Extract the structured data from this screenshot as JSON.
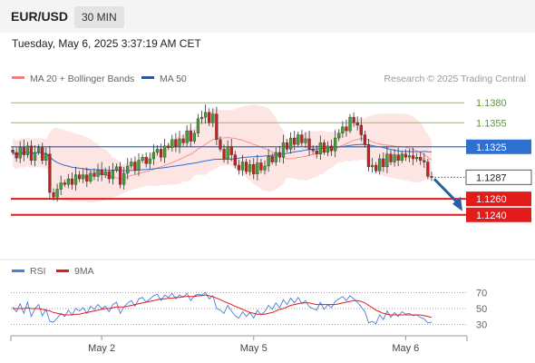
{
  "header": {
    "symbol": "EUR/USD",
    "timeframe": "30 MIN"
  },
  "timestamp": "Tuesday, May 6, 2025 3:37:19 AM CET",
  "legend": {
    "items": [
      {
        "label": "MA 20 + Bollinger Bands",
        "color": "#f08080"
      },
      {
        "label": "MA 50",
        "color": "#2e5597"
      }
    ]
  },
  "source": "Research © 2025 Trading Central",
  "rsi_legend": {
    "items": [
      {
        "label": "RSI",
        "color": "#4a7fd6"
      },
      {
        "label": "9MA",
        "color": "#e21b1b"
      }
    ]
  },
  "colors": {
    "up": "#41a32f",
    "down": "#c81e1e",
    "resistance": "#8ac26a",
    "pivot": "#2e6fcf",
    "support": "#e21b1b",
    "band_fill": "#fde0de",
    "arrow": "#2b5fa3"
  },
  "chart_data": {
    "type": "candlestick",
    "y_range": [
      1.1225,
      1.1395
    ],
    "levels": [
      {
        "value": 1.138,
        "label": "1.1380",
        "kind": "resistance"
      },
      {
        "value": 1.1355,
        "label": "1.1355",
        "kind": "resistance"
      },
      {
        "value": 1.1325,
        "label": "1.1325",
        "kind": "pivot"
      },
      {
        "value": 1.126,
        "label": "1.1260",
        "kind": "support"
      },
      {
        "value": 1.124,
        "label": "1.1240",
        "kind": "support"
      }
    ],
    "last_price": {
      "value": 1.1287,
      "label": "1.1287"
    },
    "x_ticks": [
      {
        "label": "May 2",
        "index": 24
      },
      {
        "label": "May 5",
        "index": 65
      },
      {
        "label": "May 6",
        "index": 106
      }
    ],
    "closes": [
      1.1318,
      1.1311,
      1.1324,
      1.1315,
      1.1326,
      1.1308,
      1.1318,
      1.1324,
      1.1308,
      1.1316,
      1.1268,
      1.1262,
      1.1272,
      1.128,
      1.1278,
      1.1285,
      1.1278,
      1.129,
      1.1285,
      1.129,
      1.1282,
      1.1292,
      1.1288,
      1.1296,
      1.129,
      1.1294,
      1.1285,
      1.1296,
      1.13,
      1.1278,
      1.1292,
      1.1301,
      1.1306,
      1.1296,
      1.1308,
      1.1312,
      1.1304,
      1.131,
      1.1318,
      1.1322,
      1.1312,
      1.1326,
      1.1324,
      1.1334,
      1.1325,
      1.1335,
      1.133,
      1.1345,
      1.1332,
      1.1342,
      1.136,
      1.1362,
      1.1368,
      1.1355,
      1.1366,
      1.1334,
      1.1322,
      1.131,
      1.1325,
      1.1315,
      1.1302,
      1.1296,
      1.1306,
      1.1294,
      1.1303,
      1.1291,
      1.1305,
      1.1296,
      1.1301,
      1.1313,
      1.1306,
      1.1318,
      1.1312,
      1.133,
      1.1322,
      1.1336,
      1.1328,
      1.134,
      1.133,
      1.1335,
      1.1322,
      1.132,
      1.1316,
      1.133,
      1.1318,
      1.1326,
      1.132,
      1.1336,
      1.1342,
      1.135,
      1.1345,
      1.1362,
      1.1355,
      1.1352,
      1.134,
      1.1328,
      1.13,
      1.1302,
      1.1295,
      1.131,
      1.13,
      1.1316,
      1.1306,
      1.1315,
      1.1308,
      1.1316,
      1.1312,
      1.1314,
      1.131,
      1.1312,
      1.1308,
      1.1306,
      1.1288,
      1.1287
    ],
    "rsi": {
      "levels": [
        70,
        50,
        30
      ],
      "y_range": [
        25,
        75
      ],
      "values": [
        52,
        46,
        56,
        44,
        58,
        40,
        50,
        55,
        41,
        49,
        34,
        33,
        38,
        44,
        40,
        48,
        42,
        50,
        47,
        51,
        44,
        53,
        49,
        55,
        50,
        53,
        46,
        55,
        58,
        44,
        52,
        57,
        60,
        53,
        62,
        64,
        58,
        62,
        66,
        68,
        60,
        67,
        64,
        69,
        62,
        67,
        64,
        69,
        60,
        66,
        68,
        67,
        70,
        62,
        66,
        50,
        48,
        44,
        54,
        47,
        41,
        38,
        46,
        40,
        45,
        38,
        48,
        42,
        46,
        54,
        49,
        57,
        51,
        61,
        55,
        63,
        57,
        64,
        56,
        60,
        52,
        50,
        48,
        58,
        49,
        55,
        51,
        59,
        62,
        65,
        60,
        66,
        62,
        58,
        52,
        46,
        32,
        34,
        31,
        42,
        36,
        47,
        39,
        45,
        40,
        46,
        43,
        44,
        41,
        42,
        39,
        37,
        32,
        33
      ],
      "ma9": [
        50,
        50,
        50,
        50,
        51,
        50,
        50,
        50,
        49,
        48,
        47,
        45,
        44,
        43,
        42,
        42,
        42,
        43,
        43,
        44,
        45,
        46,
        47,
        48,
        49,
        50,
        50,
        51,
        52,
        52,
        52,
        53,
        54,
        55,
        56,
        57,
        58,
        59,
        60,
        61,
        62,
        62,
        63,
        63,
        64,
        64,
        65,
        65,
        65,
        65,
        66,
        66,
        67,
        66,
        65,
        63,
        61,
        59,
        57,
        55,
        53,
        51,
        49,
        47,
        45,
        44,
        43,
        43,
        43,
        44,
        45,
        47,
        49,
        50,
        52,
        54,
        55,
        56,
        57,
        57,
        57,
        56,
        55,
        55,
        55,
        55,
        55,
        55,
        56,
        57,
        58,
        59,
        60,
        60,
        59,
        57,
        54,
        51,
        48,
        46,
        44,
        43,
        42,
        42,
        42,
        42,
        42,
        42,
        42,
        42,
        42,
        41,
        40,
        39
      ]
    }
  }
}
